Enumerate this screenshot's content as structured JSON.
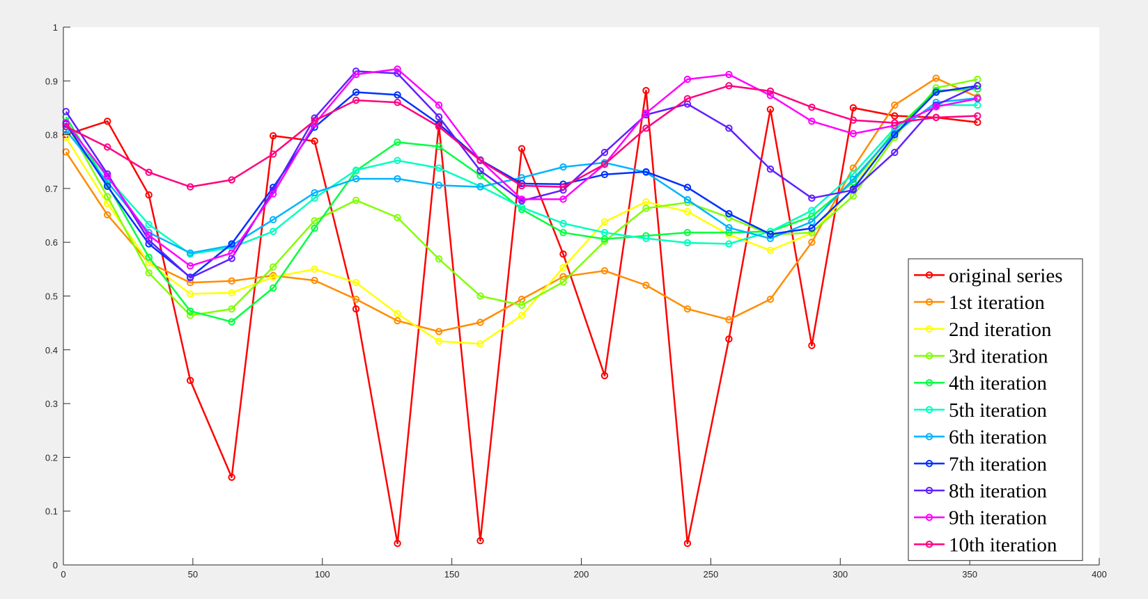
{
  "chart_data": {
    "type": "line",
    "grid": false,
    "legend_position": "bottom-right",
    "xlim": [
      0,
      400
    ],
    "ylim": [
      0,
      1
    ],
    "x_ticks": [
      0,
      50,
      100,
      150,
      200,
      250,
      300,
      350,
      400
    ],
    "y_ticks": [
      0,
      0.1,
      0.2,
      0.3,
      0.4,
      0.5,
      0.6,
      0.7,
      0.8,
      0.9,
      1
    ],
    "x_tick_labels": [
      "0",
      "50",
      "100",
      "150",
      "200",
      "250",
      "300",
      "350",
      "400"
    ],
    "y_tick_labels": [
      "0",
      "0.1",
      "0.2",
      "0.3",
      "0.4",
      "0.5",
      "0.6",
      "0.7",
      "0.8",
      "0.9",
      "1"
    ],
    "x": [
      1,
      17,
      33,
      49,
      65,
      81,
      97,
      113,
      129,
      145,
      161,
      177,
      193,
      209,
      225,
      241,
      257,
      273,
      289,
      305,
      321,
      337,
      353
    ],
    "series": [
      {
        "name": "original series",
        "color": "#ff0000",
        "values": [
          0.8,
          0.825,
          0.688,
          0.343,
          0.163,
          0.798,
          0.788,
          0.476,
          0.04,
          0.818,
          0.045,
          0.774,
          0.578,
          0.352,
          0.882,
          0.04,
          0.42,
          0.847,
          0.408,
          0.85,
          0.835,
          0.832,
          0.823
        ]
      },
      {
        "name": "1st iteration",
        "color": "#ff8c00",
        "values": [
          0.768,
          0.651,
          0.562,
          0.525,
          0.528,
          0.538,
          0.529,
          0.494,
          0.454,
          0.434,
          0.451,
          0.494,
          0.536,
          0.547,
          0.52,
          0.476,
          0.456,
          0.494,
          0.6,
          0.738,
          0.855,
          0.905,
          0.87
        ]
      },
      {
        "name": "2nd iteration",
        "color": "#ffff00",
        "values": [
          0.795,
          0.672,
          0.562,
          0.504,
          0.506,
          0.535,
          0.55,
          0.525,
          0.467,
          0.416,
          0.411,
          0.464,
          0.553,
          0.638,
          0.675,
          0.657,
          0.614,
          0.585,
          0.617,
          0.7,
          0.81,
          0.88,
          0.885
        ]
      },
      {
        "name": "3rd iteration",
        "color": "#80ff00",
        "values": [
          0.822,
          0.685,
          0.543,
          0.464,
          0.476,
          0.554,
          0.64,
          0.678,
          0.646,
          0.569,
          0.5,
          0.483,
          0.526,
          0.602,
          0.663,
          0.674,
          0.646,
          0.614,
          0.618,
          0.686,
          0.795,
          0.887,
          0.903
        ]
      },
      {
        "name": "4th iteration",
        "color": "#00ff40",
        "values": [
          0.833,
          0.707,
          0.572,
          0.472,
          0.452,
          0.515,
          0.626,
          0.733,
          0.786,
          0.778,
          0.724,
          0.661,
          0.618,
          0.606,
          0.612,
          0.618,
          0.618,
          0.62,
          0.648,
          0.712,
          0.807,
          0.882,
          0.885
        ]
      },
      {
        "name": "5th iteration",
        "color": "#00ffc0",
        "values": [
          0.823,
          0.72,
          0.633,
          0.578,
          0.59,
          0.62,
          0.682,
          0.734,
          0.752,
          0.738,
          0.704,
          0.665,
          0.635,
          0.618,
          0.607,
          0.599,
          0.597,
          0.62,
          0.659,
          0.727,
          0.812,
          0.855,
          0.855
        ]
      },
      {
        "name": "6th iteration",
        "color": "#00b4ff",
        "values": [
          0.808,
          0.712,
          0.618,
          0.58,
          0.594,
          0.642,
          0.692,
          0.718,
          0.718,
          0.706,
          0.703,
          0.72,
          0.74,
          0.748,
          0.73,
          0.679,
          0.627,
          0.607,
          0.638,
          0.717,
          0.803,
          0.86,
          0.868
        ]
      },
      {
        "name": "7th iteration",
        "color": "#0030ff",
        "values": [
          0.82,
          0.704,
          0.597,
          0.535,
          0.597,
          0.702,
          0.814,
          0.879,
          0.874,
          0.82,
          0.753,
          0.709,
          0.708,
          0.726,
          0.731,
          0.702,
          0.653,
          0.615,
          0.626,
          0.699,
          0.8,
          0.879,
          0.891
        ]
      },
      {
        "name": "8th iteration",
        "color": "#6020ff",
        "values": [
          0.843,
          0.727,
          0.604,
          0.534,
          0.57,
          0.697,
          0.831,
          0.918,
          0.914,
          0.833,
          0.733,
          0.677,
          0.697,
          0.767,
          0.837,
          0.857,
          0.812,
          0.736,
          0.682,
          0.697,
          0.767,
          0.855,
          0.891
        ]
      },
      {
        "name": "9th iteration",
        "color": "#ff00ff",
        "values": [
          0.822,
          0.723,
          0.613,
          0.556,
          0.58,
          0.69,
          0.82,
          0.912,
          0.922,
          0.855,
          0.752,
          0.68,
          0.68,
          0.745,
          0.84,
          0.903,
          0.912,
          0.873,
          0.825,
          0.802,
          0.817,
          0.852,
          0.867
        ]
      },
      {
        "name": "10th iteration",
        "color": "#ff0080",
        "values": [
          0.815,
          0.777,
          0.73,
          0.703,
          0.716,
          0.764,
          0.826,
          0.864,
          0.86,
          0.815,
          0.752,
          0.705,
          0.703,
          0.745,
          0.812,
          0.867,
          0.891,
          0.881,
          0.851,
          0.827,
          0.822,
          0.832,
          0.835
        ]
      }
    ]
  }
}
